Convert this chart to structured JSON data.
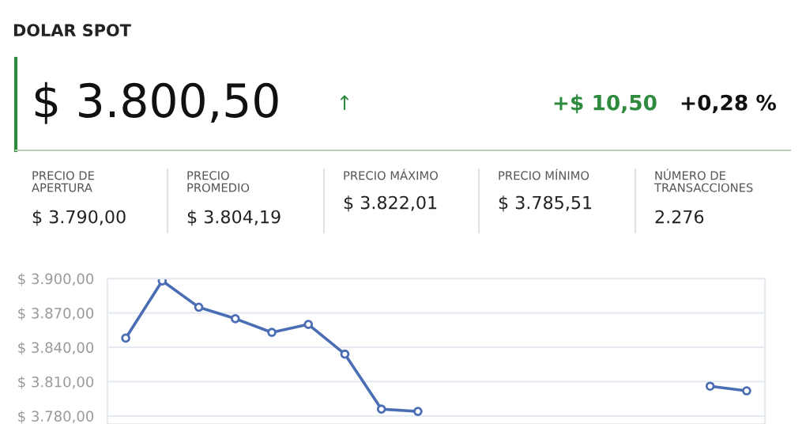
{
  "chart_data": [
    {
      "type": "other",
      "title": "DOLAR SPOT",
      "annotations": [
        "$ 3.800,50",
        "↑",
        "+$ 10,50",
        "+0,28 %",
        "PRECIO DE\nAPERTURA",
        "$ 3.790,00",
        "PRECIO\nPROMEDIO",
        "$ 3.804,19",
        "PRECIO MÁXIMO",
        "$ 3.822,01",
        "PRECIO MÍNIMO",
        "$ 3.785,51",
        "NÚMERO DE\nTRANSACCIONES",
        "2.276"
      ]
    },
    {
      "type": "line",
      "categories": [
        null,
        null,
        null,
        null,
        null,
        null,
        null,
        null,
        null,
        null,
        null,
        null,
        null,
        null,
        null,
        null,
        null,
        null
      ],
      "series": [
        {
          "color": "#4a6db3",
          "values": [
            3848,
            3898,
            3875,
            3865,
            3853,
            3860,
            3834,
            3786,
            3784,
            null,
            null,
            null,
            null,
            null,
            null,
            null,
            3806,
            3802
          ]
        }
      ],
      "ylim": [
        3773,
        3900
      ],
      "yticks": [
        {
          "value": 3780,
          "label": "$ 3.780,00"
        },
        {
          "value": 3810,
          "label": "$ 3.810,00"
        },
        {
          "value": 3840,
          "label": "$ 3.840,00"
        },
        {
          "value": 3870,
          "label": "$ 3.870,00"
        },
        {
          "value": 3900,
          "label": "$ 3.900,00"
        }
      ],
      "grid": "y",
      "marker": "circle",
      "line_style": "solid",
      "tick_labels": "y"
    }
  ]
}
